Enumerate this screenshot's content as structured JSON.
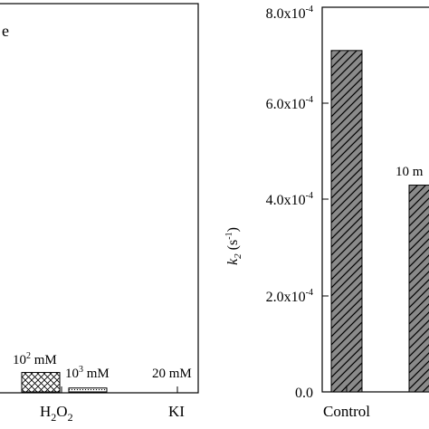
{
  "chart_data": [
    {
      "type": "bar",
      "panel": "left",
      "title_fragment": "e",
      "categories": [
        {
          "main": "H",
          "sub1": "2",
          "main2": "O",
          "sub2": "2"
        },
        {
          "main": "KI"
        }
      ],
      "bars": [
        {
          "group": "H2O2",
          "annotation": {
            "base": "10",
            "sup": "2",
            "unit": " mM"
          },
          "value": 0.05,
          "pattern": "crosshatch"
        },
        {
          "group": "H2O2",
          "annotation": {
            "base": "10",
            "sup": "3",
            "unit": " mM"
          },
          "value": 0.01,
          "pattern": "dots"
        },
        {
          "group": "KI",
          "annotation": {
            "text": "20 mM"
          },
          "value": 0,
          "pattern": "none"
        }
      ],
      "ylim": [
        0,
        1
      ]
    },
    {
      "type": "bar",
      "panel": "right",
      "ylabel": {
        "main": "k",
        "sub": "2",
        "unit": " (s",
        "sup": "-1",
        "close": ")"
      },
      "yticks": [
        {
          "value": 0,
          "label": "0.0"
        },
        {
          "value": 0.0002,
          "label": "2.0x10",
          "sup": "-4"
        },
        {
          "value": 0.0004,
          "label": "4.0x10",
          "sup": "-4"
        },
        {
          "value": 0.0006,
          "label": "6.0x10",
          "sup": "-4"
        },
        {
          "value": 0.0008,
          "label": "8.0x10",
          "sup": "-4"
        }
      ],
      "ylim": [
        0,
        0.0008
      ],
      "categories": [
        "Control"
      ],
      "bars": [
        {
          "category": "Control",
          "value": 0.00071,
          "pattern": "diagonal"
        },
        {
          "category": "",
          "annotation": "10 m",
          "value": 0.00043,
          "pattern": "diagonal"
        }
      ]
    }
  ]
}
